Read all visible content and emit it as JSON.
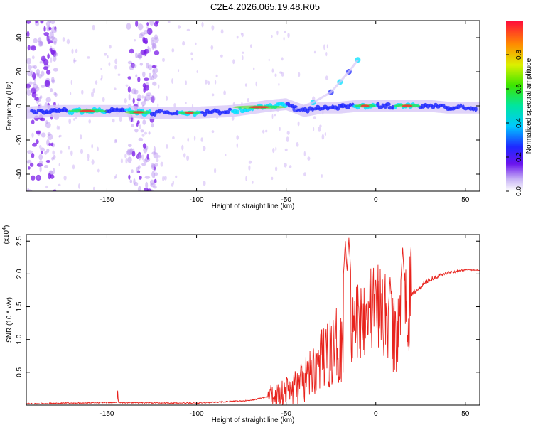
{
  "title": "C2E4.2026.065.19.48.R05",
  "colors": {
    "snr_line": "#e8221c",
    "signal_core": "#ff2a2a",
    "signal_mid": "#00e0ff",
    "signal_edge": "#7a19e8",
    "noise": "#b48cf0"
  },
  "chart_data": [
    {
      "type": "heatmap",
      "name": "spectrogram",
      "xlabel": "Height of straight line (km)",
      "ylabel": "Frequency (Hz)",
      "xlim": [
        -195,
        58
      ],
      "ylim": [
        -50,
        50
      ],
      "xticks": [
        -150,
        -100,
        -50,
        0,
        50
      ],
      "xtick_labels": [
        "-150",
        "-100",
        "-50",
        "0",
        "50"
      ],
      "yticks": [
        -40,
        -20,
        0,
        20,
        40
      ],
      "ytick_labels": [
        "-40",
        "-20",
        "0",
        "20",
        "40"
      ],
      "colorbar": {
        "label": "Normalized spectral amplitude",
        "range": [
          0,
          1
        ],
        "ticks": [
          0.0,
          0.2,
          0.4,
          0.6,
          0.8
        ],
        "tick_labels": [
          "0.0",
          "0.2",
          "0.4",
          "0.6",
          "0.8"
        ]
      },
      "main_band": {
        "x": [
          -195,
          -180,
          -160,
          -140,
          -130,
          -120,
          -100,
          -80,
          -60,
          -50,
          -40,
          -30,
          -20,
          -10,
          0,
          10,
          20,
          30,
          40,
          50,
          58
        ],
        "freq": [
          -4,
          -3,
          -3,
          -3,
          -4,
          -4,
          -4,
          -3,
          0,
          1,
          -3,
          -1,
          -1,
          0,
          0,
          0,
          0,
          0,
          -1,
          -1,
          -1
        ]
      },
      "rising_branch": {
        "x": [
          -45,
          -35,
          -25,
          -20,
          -15,
          -10
        ],
        "freq": [
          -2,
          2,
          8,
          14,
          20,
          27
        ]
      },
      "strong_segments": [
        [
          -172,
          -150
        ],
        [
          -140,
          -125
        ],
        [
          -110,
          -98
        ],
        [
          -80,
          -50
        ],
        [
          -12,
          0
        ],
        [
          10,
          25
        ]
      ],
      "noise_columns": [
        -186,
        -130
      ]
    },
    {
      "type": "line",
      "name": "snr",
      "xlabel": "Height of straight line (km)",
      "ylabel": "SNR (10 * v/v)",
      "scale_label": "(x10",
      "scale_exp": "4",
      "scale_close": ")",
      "xlim": [
        -195,
        58
      ],
      "ylim": [
        0,
        2.6
      ],
      "xticks": [
        -150,
        -100,
        -50,
        0,
        50
      ],
      "xtick_labels": [
        "-150",
        "-100",
        "-50",
        "0",
        "50"
      ],
      "yticks": [
        0.5,
        1.0,
        1.5,
        2.0,
        2.5
      ],
      "ytick_labels": [
        "0.5",
        "1.0",
        "1.5",
        "2.0",
        "2.5"
      ],
      "base_curve": {
        "x": [
          -195,
          -150,
          -100,
          -70,
          -60,
          -50,
          -40,
          -35,
          -30,
          -25,
          -20,
          -15,
          -10,
          -5,
          0,
          5,
          10,
          15,
          20,
          30,
          40,
          50,
          58
        ],
        "y": [
          0.02,
          0.04,
          0.03,
          0.07,
          0.13,
          0.22,
          0.35,
          0.55,
          0.7,
          0.8,
          0.95,
          1.1,
          1.3,
          1.55,
          1.45,
          1.4,
          1.05,
          1.2,
          1.7,
          1.92,
          2.02,
          2.06,
          2.06
        ]
      },
      "peaks": [
        {
          "x": -144,
          "y": 0.22
        },
        {
          "x": -17,
          "y": 2.5
        },
        {
          "x": -15,
          "y": 2.55
        },
        {
          "x": 8,
          "y": 1.95
        },
        {
          "x": 15,
          "y": 2.4
        }
      ]
    }
  ]
}
